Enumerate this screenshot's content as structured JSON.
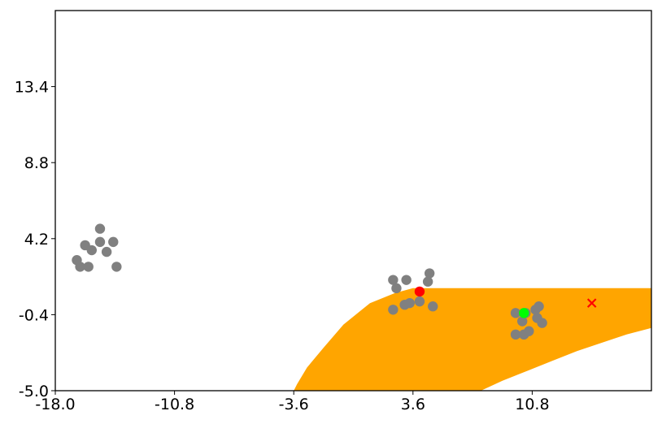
{
  "chart_data": {
    "type": "scatter",
    "title": "",
    "xlabel": "",
    "ylabel": "",
    "xlim": [
      -18.0,
      18.0
    ],
    "ylim": [
      -5.0,
      18.0
    ],
    "x_ticks": [
      -18.0,
      -10.8,
      -3.6,
      3.6,
      10.8
    ],
    "x_tick_labels": [
      "-18.0",
      "-10.8",
      "-3.6",
      "3.6",
      "10.8"
    ],
    "y_ticks": [
      -5.0,
      -0.4,
      4.2,
      8.8,
      13.4
    ],
    "y_tick_labels": [
      "-5.0",
      "-0.4",
      "4.2",
      "8.8",
      "13.4"
    ],
    "grid": false,
    "legend": "none",
    "colors": {
      "region": "#FFA500",
      "points": "#808080",
      "highlight_red": "#FF0000",
      "highlight_green": "#00FF00",
      "cross": "#FF0000"
    },
    "region": {
      "name": "",
      "boundary": [
        [
          -3.6,
          -5.0
        ],
        [
          -3.4,
          -4.6
        ],
        [
          -2.8,
          -3.6
        ],
        [
          -1.8,
          -2.4
        ],
        [
          -0.6,
          -1.0
        ],
        [
          1.0,
          0.3
        ],
        [
          2.5,
          0.9
        ],
        [
          3.6,
          1.2
        ],
        [
          8.0,
          1.2
        ],
        [
          12.0,
          1.2
        ],
        [
          18.0,
          1.2
        ],
        [
          18.0,
          -1.2
        ],
        [
          16.5,
          -1.6
        ],
        [
          15.0,
          -2.1
        ],
        [
          13.5,
          -2.6
        ],
        [
          12.0,
          -3.2
        ],
        [
          10.5,
          -3.8
        ],
        [
          9.0,
          -4.4
        ],
        [
          7.7,
          -5.0
        ]
      ]
    },
    "series": [
      {
        "points": [
          [
            -16.7,
            2.9
          ],
          [
            -16.5,
            2.5
          ],
          [
            -16.2,
            3.8
          ],
          [
            -15.8,
            3.5
          ],
          [
            -16.0,
            2.5
          ],
          [
            -15.3,
            4.0
          ],
          [
            -15.3,
            4.8
          ],
          [
            -14.9,
            3.4
          ],
          [
            -14.5,
            4.0
          ],
          [
            -14.3,
            2.5
          ]
        ]
      },
      {
        "points": [
          [
            2.4,
            1.7
          ],
          [
            2.6,
            1.2
          ],
          [
            3.1,
            0.2
          ],
          [
            2.4,
            -0.1
          ],
          [
            3.2,
            1.7
          ],
          [
            4.0,
            0.4
          ],
          [
            4.5,
            1.6
          ],
          [
            4.6,
            2.1
          ],
          [
            4.8,
            0.1
          ],
          [
            3.4,
            0.3
          ]
        ]
      },
      {
        "points": [
          [
            9.8,
            -0.3
          ],
          [
            10.2,
            -0.8
          ],
          [
            9.8,
            -1.6
          ],
          [
            10.3,
            -1.6
          ],
          [
            10.6,
            -1.4
          ],
          [
            11.1,
            -0.6
          ],
          [
            11.4,
            -0.9
          ],
          [
            11.0,
            -0.1
          ],
          [
            11.2,
            0.1
          ],
          [
            10.4,
            -0.3
          ]
        ]
      }
    ],
    "highlights": [
      {
        "x": 4.0,
        "y": 1.0,
        "marker": "circle",
        "color": "#FF0000"
      },
      {
        "x": 10.3,
        "y": -0.3,
        "marker": "circle",
        "color": "#00FF00"
      },
      {
        "x": 14.4,
        "y": 0.3,
        "marker": "x",
        "color": "#FF0000"
      }
    ]
  }
}
